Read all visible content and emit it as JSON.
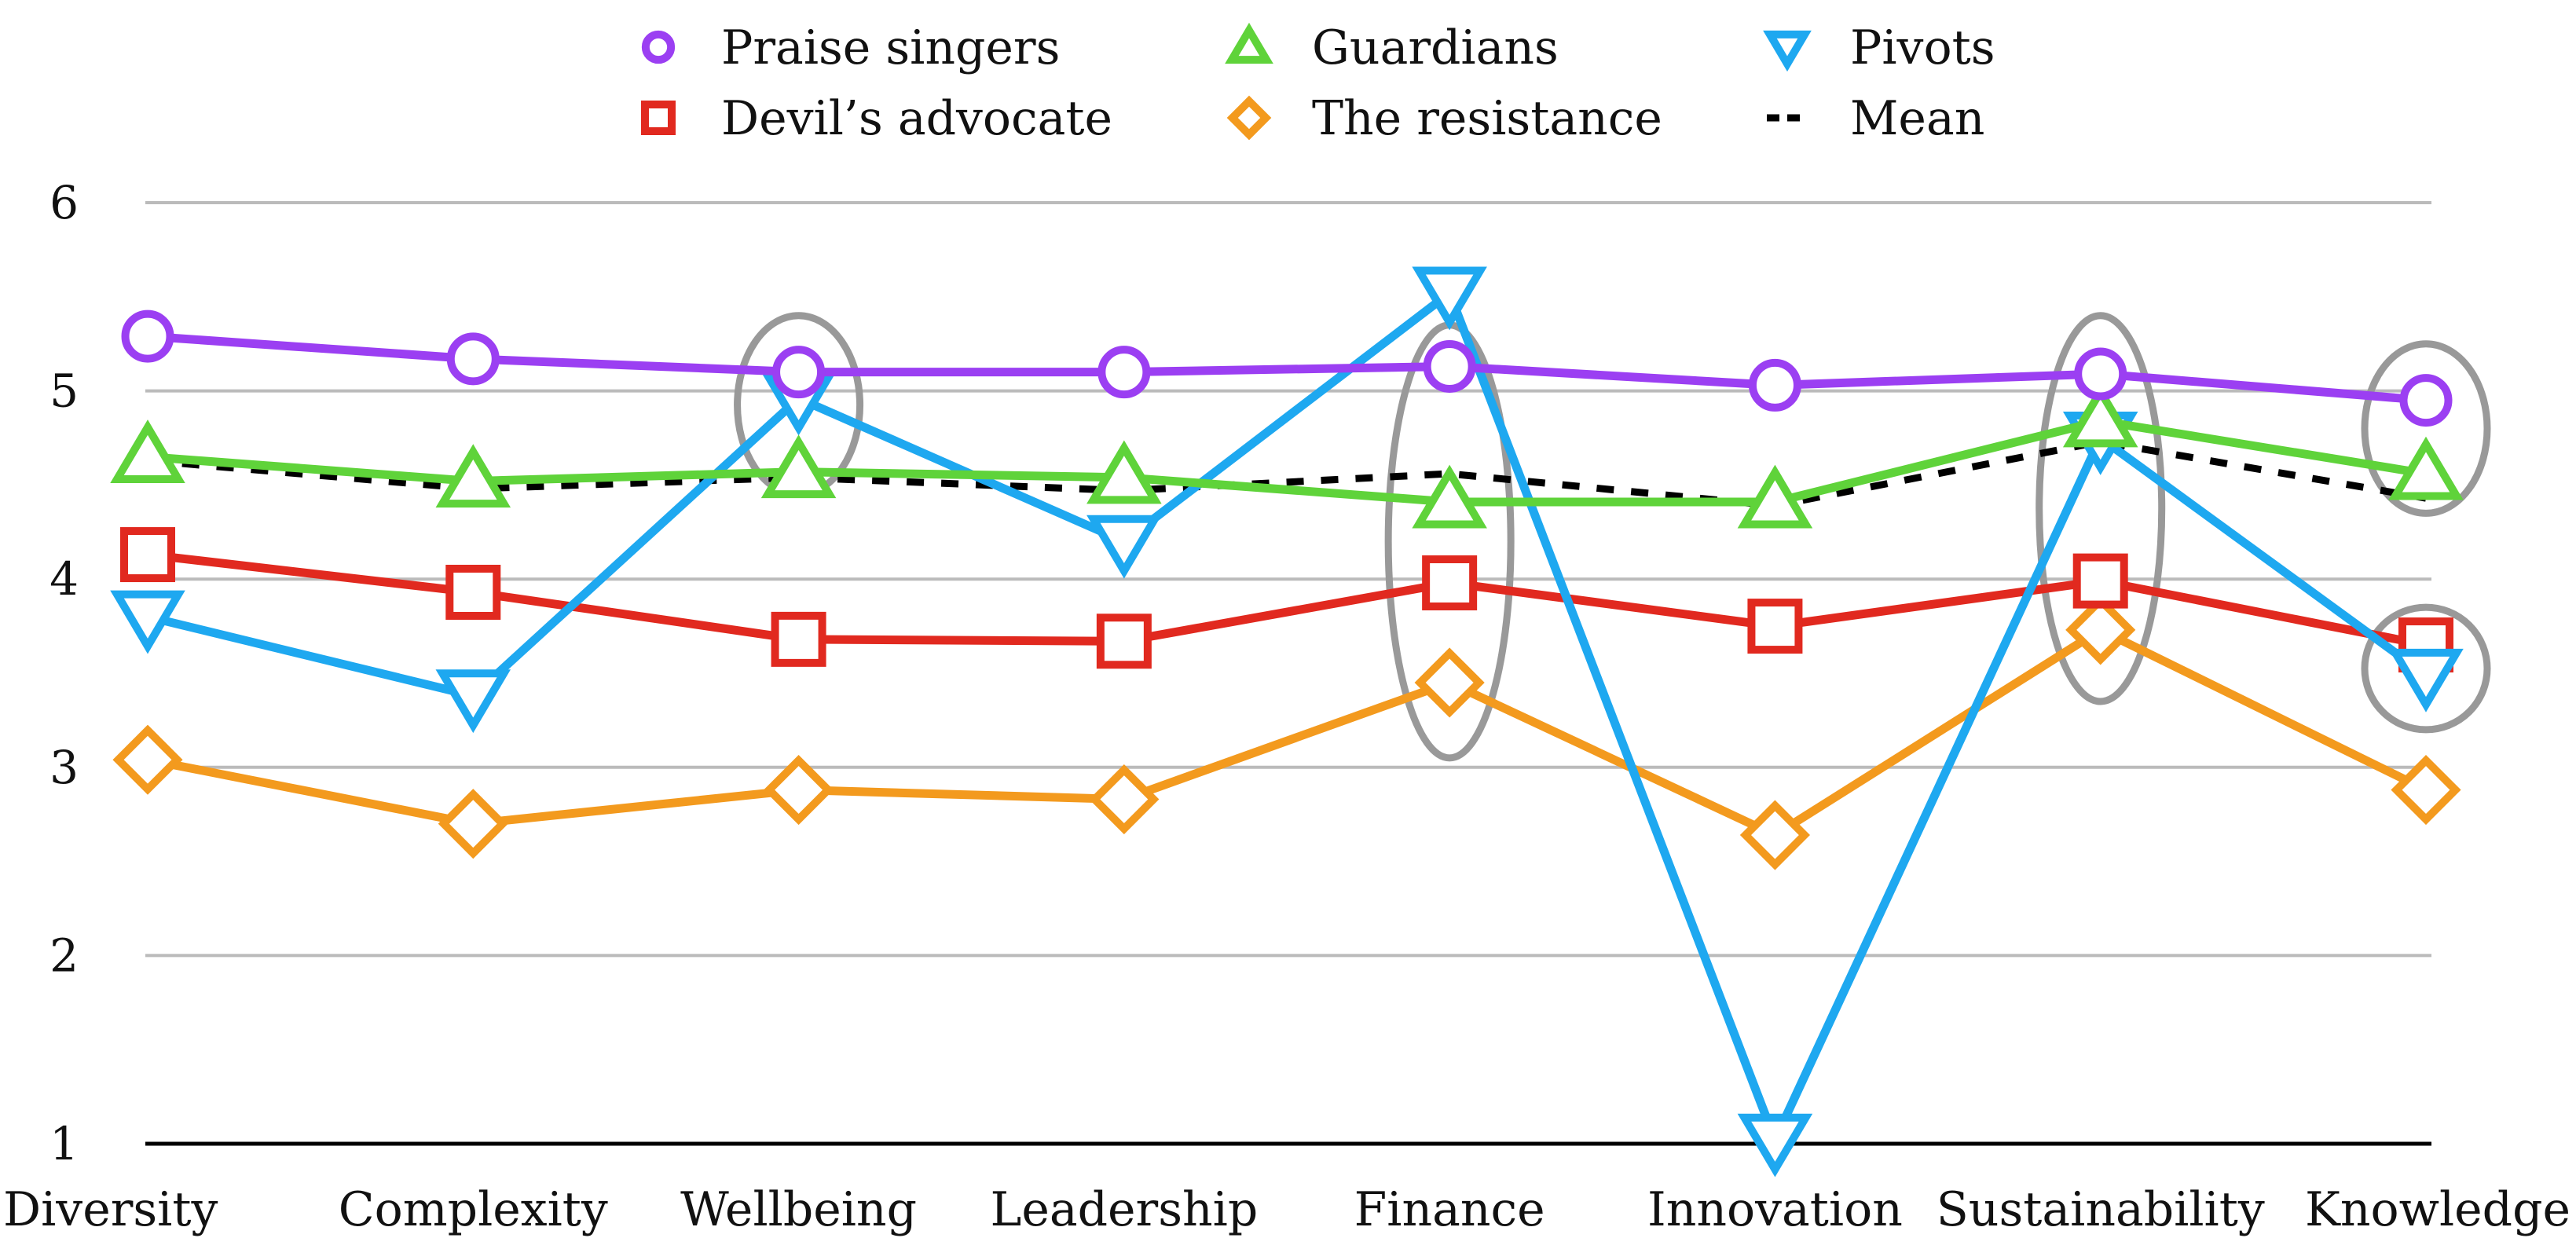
{
  "chart_data": {
    "type": "line",
    "title": "",
    "xlabel": "",
    "ylabel": "",
    "ylim": [
      1,
      6
    ],
    "yticks": [
      1,
      2,
      3,
      4,
      5,
      6
    ],
    "grid": true,
    "legend_position": "top-center",
    "categories": [
      "Diversity",
      "Complexity",
      "Wellbeing",
      "Leadership",
      "Finance",
      "Innovation",
      "Sustainability",
      "Knowledge"
    ],
    "series": [
      {
        "name": "Praise singers",
        "marker": "circle",
        "color": "#9b3ff2",
        "values": [
          5.29,
          5.17,
          5.1,
          5.1,
          5.13,
          5.03,
          5.09,
          4.95
        ]
      },
      {
        "name": "Guardians",
        "marker": "triangle-up",
        "color": "#5fd33a",
        "values": [
          4.65,
          4.52,
          4.57,
          4.54,
          4.41,
          4.41,
          4.84,
          4.56
        ]
      },
      {
        "name": "Pivots",
        "marker": "triangle-down",
        "color": "#1ea8f0",
        "values": [
          3.8,
          3.38,
          4.96,
          4.2,
          5.52,
          1.02,
          4.75,
          3.49
        ]
      },
      {
        "name": "Devil’s advocate",
        "marker": "square",
        "color": "#e1291f",
        "values": [
          4.13,
          3.93,
          3.68,
          3.67,
          3.98,
          3.75,
          3.99,
          3.65
        ]
      },
      {
        "name": "The resistance",
        "marker": "diamond",
        "color": "#f39a1e",
        "values": [
          3.04,
          2.7,
          2.88,
          2.83,
          3.45,
          2.64,
          3.73,
          2.88
        ]
      },
      {
        "name": "Mean",
        "marker": "none",
        "color": "#000000",
        "dashed": true,
        "values": [
          4.63,
          4.48,
          4.54,
          4.47,
          4.56,
          4.39,
          4.73,
          4.43
        ]
      }
    ],
    "legend_order": [
      "Praise singers",
      "Guardians",
      "Pivots",
      "Devil’s advocate",
      "The resistance",
      "Mean"
    ],
    "highlights": [
      {
        "category": "Wellbeing",
        "from": 4.45,
        "to": 5.4
      },
      {
        "category": "Finance",
        "from": 3.05,
        "to": 5.35
      },
      {
        "category": "Sustainability",
        "from": 3.35,
        "to": 5.4
      },
      {
        "category": "Knowledge",
        "from": 4.35,
        "to": 5.25
      },
      {
        "category": "Knowledge",
        "from": 3.2,
        "to": 3.85
      }
    ],
    "highlight_color": "#999999",
    "grid_color": "#bbbbbb"
  }
}
